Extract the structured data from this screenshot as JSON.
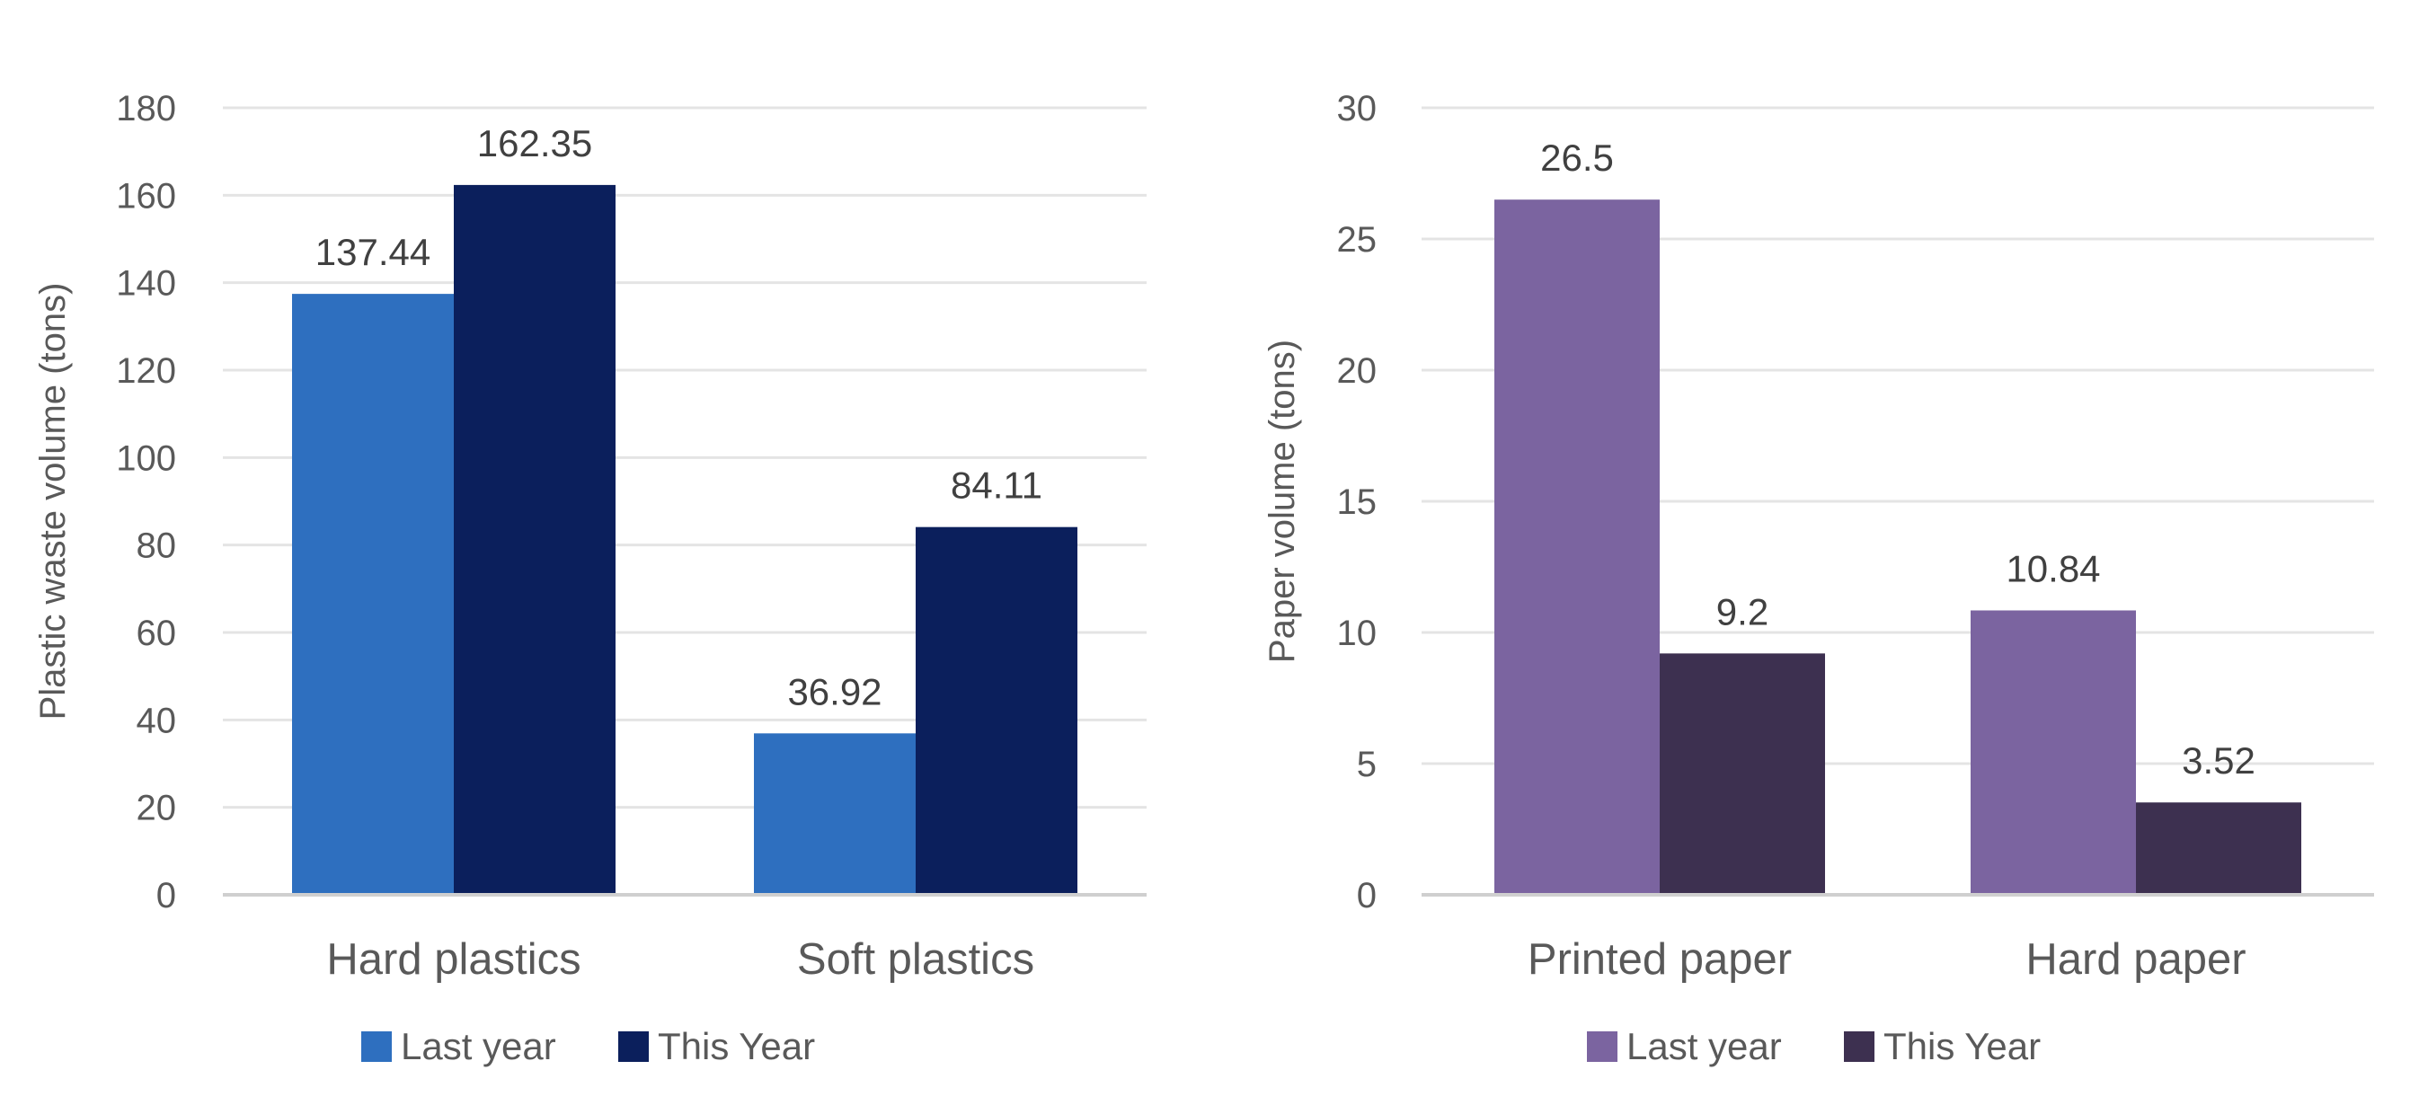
{
  "chart_data": [
    {
      "type": "bar",
      "categories": [
        "Hard plastics",
        "Soft plastics"
      ],
      "series": [
        {
          "name": "Last year",
          "values": [
            137.44,
            36.92
          ],
          "color": "#2e6fbf"
        },
        {
          "name": "This Year",
          "values": [
            162.35,
            84.11
          ],
          "color": "#0b1f5c"
        }
      ],
      "ylabel": "Plastic waste volume (tons)",
      "ylim": [
        0,
        180
      ],
      "yticks": [
        0,
        20,
        40,
        60,
        80,
        100,
        120,
        140,
        160,
        180
      ],
      "data_labels": [
        "137.44",
        "36.92",
        "162.35",
        "84.11"
      ],
      "grid": true,
      "legend": "bottom"
    },
    {
      "type": "bar",
      "categories": [
        "Printed paper",
        "Hard paper"
      ],
      "series": [
        {
          "name": "Last year",
          "values": [
            26.5,
            10.84
          ],
          "color": "#7b64a0"
        },
        {
          "name": "This Year",
          "values": [
            9.2,
            3.52
          ],
          "color": "#3d3050"
        }
      ],
      "ylabel": "Paper volume (tons)",
      "ylim": [
        0,
        30
      ],
      "yticks": [
        0,
        5,
        10,
        15,
        20,
        25,
        30
      ],
      "data_labels": [
        "26.5",
        "10.84",
        "9.2",
        "3.52"
      ],
      "grid": true,
      "legend": "bottom"
    }
  ]
}
